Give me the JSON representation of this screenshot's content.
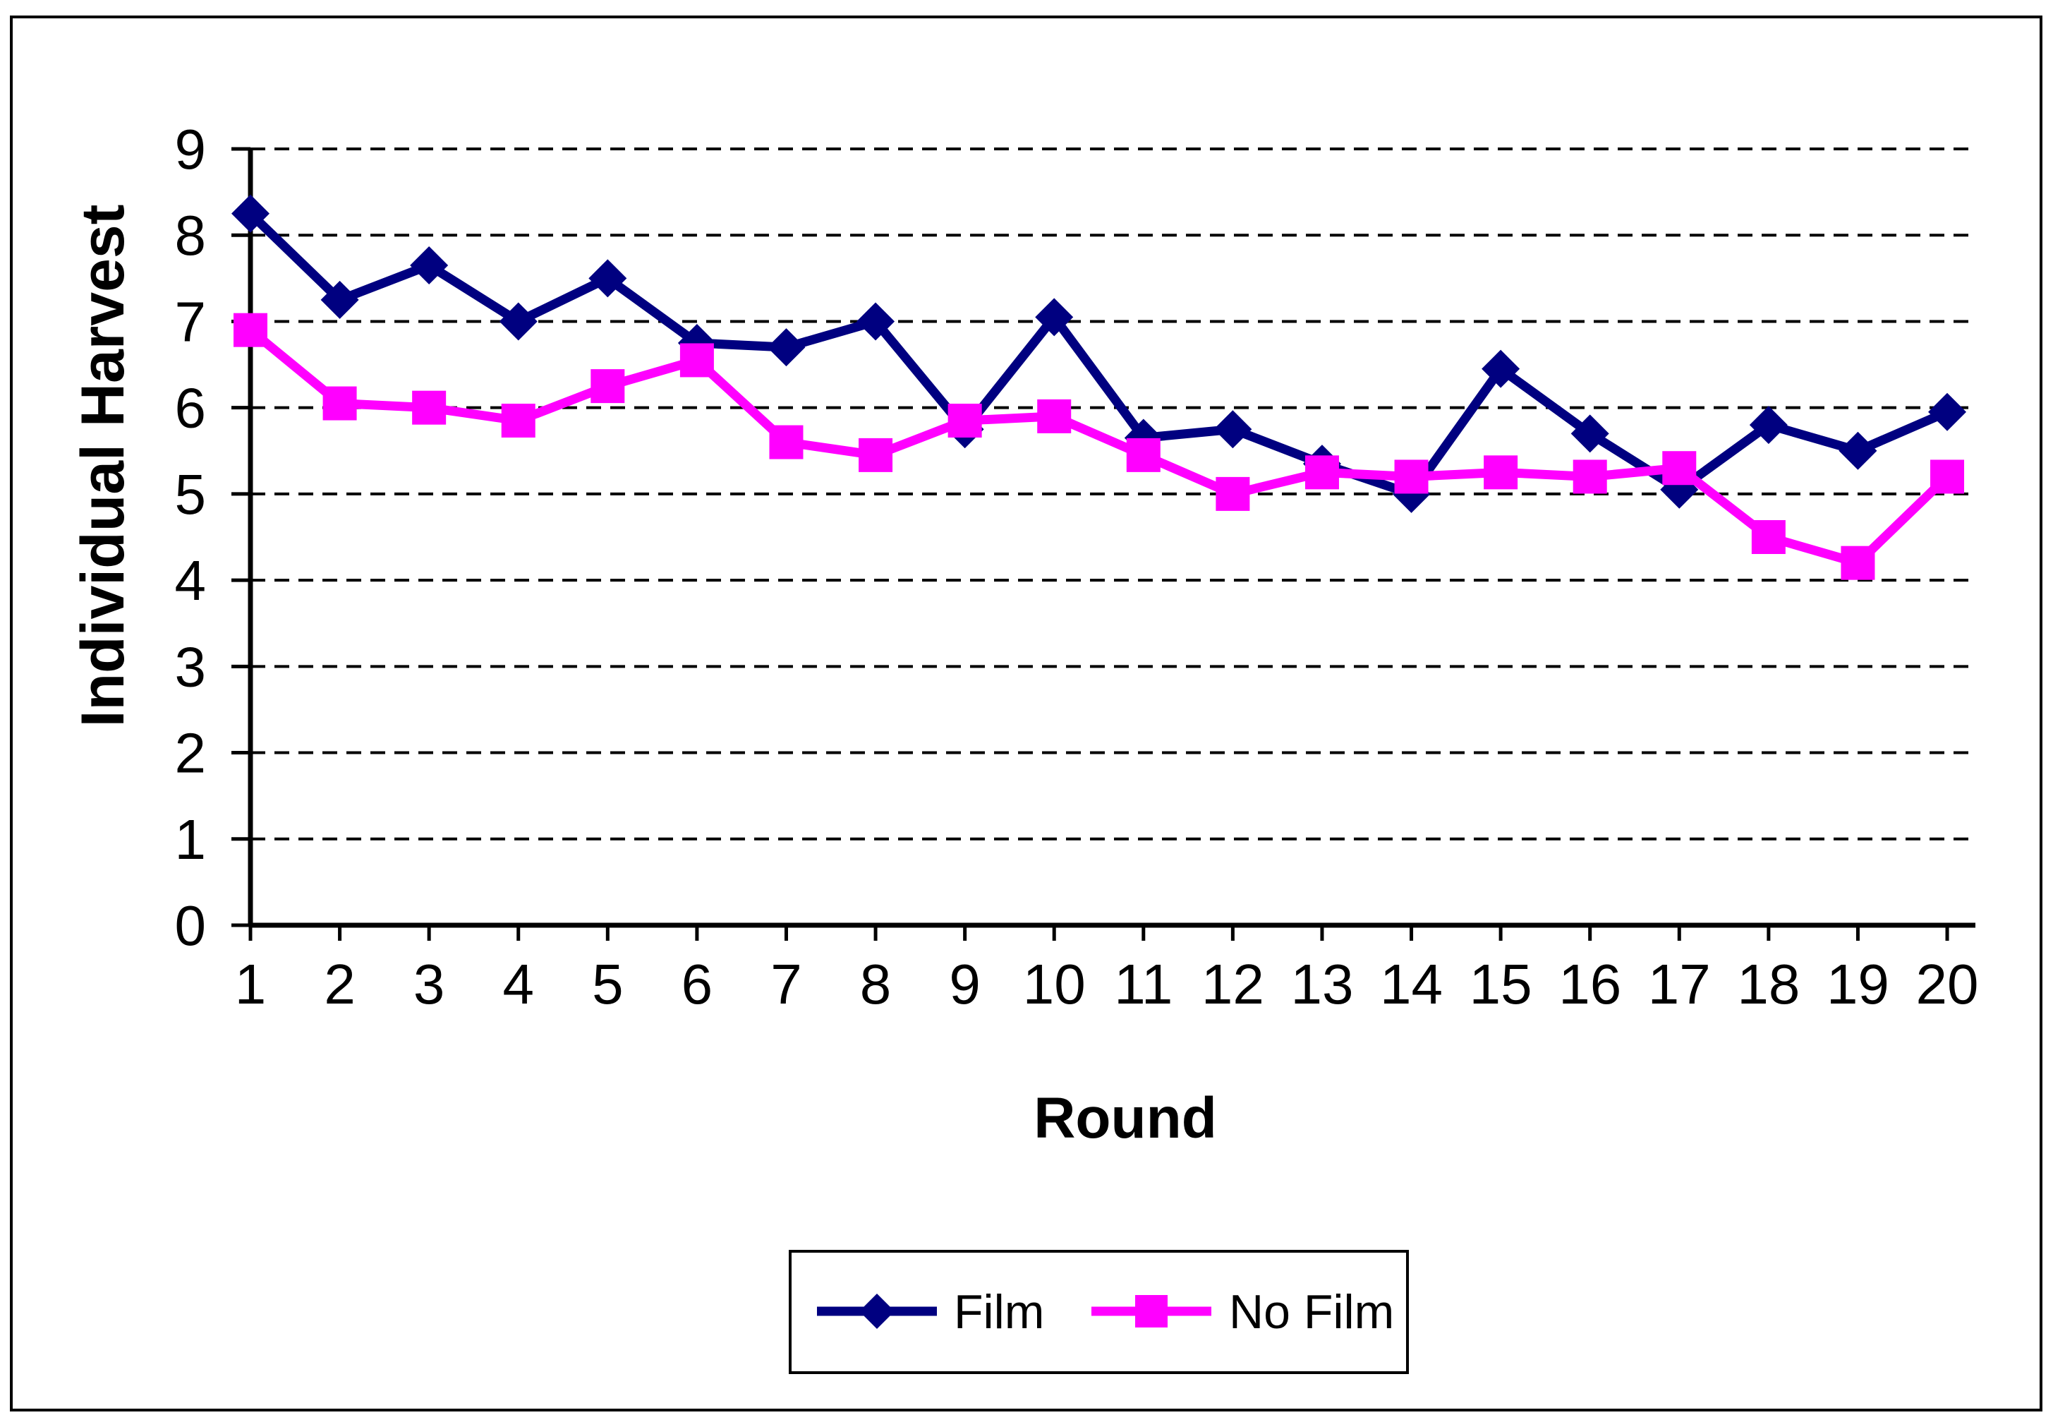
{
  "chart_data": {
    "type": "line",
    "title": "",
    "xlabel": "Round",
    "ylabel": "Individual Harvest",
    "x": [
      1,
      2,
      3,
      4,
      5,
      6,
      7,
      8,
      9,
      10,
      11,
      12,
      13,
      14,
      15,
      16,
      17,
      18,
      19,
      20
    ],
    "yticks": [
      0,
      1,
      2,
      3,
      4,
      5,
      6,
      7,
      8,
      9
    ],
    "ylim": [
      0,
      9
    ],
    "grid": "horizontal dashed black lines at each integer",
    "legend_position": "bottom-center boxed",
    "background": "#ffffff",
    "axis_color": "#000000",
    "series": [
      {
        "name": "Film",
        "color": "#000080",
        "marker": "diamond",
        "values": [
          8.25,
          7.25,
          7.65,
          7.0,
          7.5,
          6.75,
          6.7,
          7.0,
          5.75,
          7.05,
          5.65,
          5.75,
          5.35,
          5.0,
          6.45,
          5.7,
          5.05,
          5.8,
          5.5,
          5.95
        ]
      },
      {
        "name": "No Film",
        "color": "#FF00FF",
        "marker": "square",
        "values": [
          6.9,
          6.05,
          6.0,
          5.85,
          6.25,
          6.55,
          5.6,
          5.45,
          5.85,
          5.9,
          5.45,
          5.0,
          5.25,
          5.2,
          5.25,
          5.2,
          5.3,
          4.5,
          4.2,
          5.2
        ]
      }
    ]
  },
  "legend": {
    "items": [
      {
        "label": "Film"
      },
      {
        "label": "No Film"
      }
    ]
  }
}
